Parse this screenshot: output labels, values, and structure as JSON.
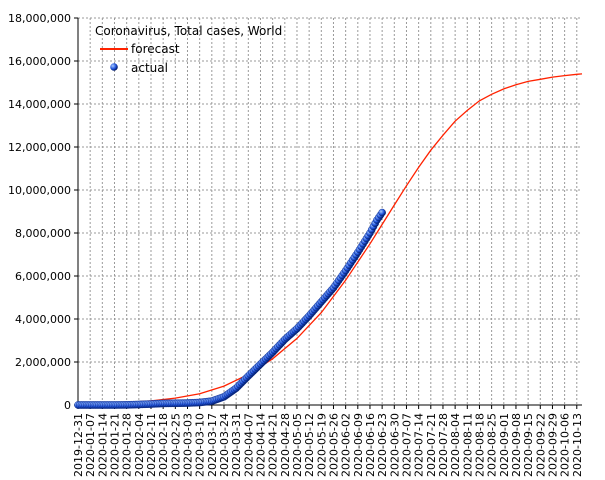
{
  "chart_data": {
    "type": "line",
    "title": "Coronavirus, Total cases, World",
    "xlabel": "",
    "ylabel": "",
    "x_range": [
      "2019-12-31",
      "2020-10-16"
    ],
    "ylim": [
      0,
      18000000
    ],
    "y_ticks": [
      0,
      2000000,
      4000000,
      6000000,
      8000000,
      10000000,
      12000000,
      14000000,
      16000000,
      18000000
    ],
    "y_tick_labels": [
      "0",
      "2,000,000",
      "4,000,000",
      "6,000,000",
      "8,000,000",
      "10,000,000",
      "12,000,000",
      "14,000,000",
      "16,000,000",
      "18,000,000"
    ],
    "x_tick_labels": [
      "2019-12-31",
      "2020-01-07",
      "2020-01-14",
      "2020-01-21",
      "2020-01-28",
      "2020-02-04",
      "2020-02-11",
      "2020-02-18",
      "2020-02-25",
      "2020-03-03",
      "2020-03-10",
      "2020-03-17",
      "2020-03-24",
      "2020-03-31",
      "2020-04-07",
      "2020-04-14",
      "2020-04-21",
      "2020-04-28",
      "2020-05-05",
      "2020-05-12",
      "2020-05-19",
      "2020-05-26",
      "2020-06-02",
      "2020-06-09",
      "2020-06-16",
      "2020-06-23",
      "2020-06-30",
      "2020-07-07",
      "2020-07-14",
      "2020-07-21",
      "2020-07-28",
      "2020-08-04",
      "2020-08-11",
      "2020-08-18",
      "2020-08-25",
      "2020-09-01",
      "2020-09-08",
      "2020-09-15",
      "2020-09-22",
      "2020-09-29",
      "2020-10-06",
      "2020-10-13"
    ],
    "grid": true,
    "legend_position": "top-left",
    "series": [
      {
        "name": "forecast",
        "kind": "line",
        "color": "#ff2200",
        "points": [
          [
            "2019-12-31",
            60000
          ],
          [
            "2020-01-14",
            80000
          ],
          [
            "2020-01-28",
            120000
          ],
          [
            "2020-02-11",
            190000
          ],
          [
            "2020-02-25",
            320000
          ],
          [
            "2020-03-10",
            520000
          ],
          [
            "2020-03-24",
            880000
          ],
          [
            "2020-04-07",
            1420000
          ],
          [
            "2020-04-21",
            2150000
          ],
          [
            "2020-05-05",
            3100000
          ],
          [
            "2020-05-19",
            4300000
          ],
          [
            "2020-06-02",
            5800000
          ],
          [
            "2020-06-16",
            7500000
          ],
          [
            "2020-06-30",
            9300000
          ],
          [
            "2020-07-07",
            10200000
          ],
          [
            "2020-07-14",
            11050000
          ],
          [
            "2020-07-21",
            11850000
          ],
          [
            "2020-07-28",
            12550000
          ],
          [
            "2020-08-04",
            13200000
          ],
          [
            "2020-08-11",
            13700000
          ],
          [
            "2020-08-18",
            14150000
          ],
          [
            "2020-08-25",
            14450000
          ],
          [
            "2020-09-01",
            14700000
          ],
          [
            "2020-09-08",
            14900000
          ],
          [
            "2020-09-15",
            15050000
          ],
          [
            "2020-09-22",
            15150000
          ],
          [
            "2020-09-29",
            15250000
          ],
          [
            "2020-10-06",
            15320000
          ],
          [
            "2020-10-13",
            15380000
          ],
          [
            "2020-10-16",
            15400000
          ]
        ]
      },
      {
        "name": "actual",
        "kind": "scatter",
        "color": "#2255dd",
        "points": [
          [
            "2019-12-31",
            0
          ],
          [
            "2020-01-07",
            0
          ],
          [
            "2020-01-14",
            100
          ],
          [
            "2020-01-21",
            300
          ],
          [
            "2020-01-28",
            5000
          ],
          [
            "2020-02-04",
            24000
          ],
          [
            "2020-02-11",
            45000
          ],
          [
            "2020-02-18",
            73000
          ],
          [
            "2020-02-25",
            80000
          ],
          [
            "2020-03-03",
            91000
          ],
          [
            "2020-03-10",
            116000
          ],
          [
            "2020-03-17",
            180000
          ],
          [
            "2020-03-24",
            380000
          ],
          [
            "2020-03-31",
            780000
          ],
          [
            "2020-04-07",
            1350000
          ],
          [
            "2020-04-14",
            1900000
          ],
          [
            "2020-04-21",
            2450000
          ],
          [
            "2020-04-28",
            3050000
          ],
          [
            "2020-05-05",
            3550000
          ],
          [
            "2020-05-12",
            4150000
          ],
          [
            "2020-05-19",
            4800000
          ],
          [
            "2020-05-26",
            5450000
          ],
          [
            "2020-06-02",
            6250000
          ],
          [
            "2020-06-09",
            7100000
          ],
          [
            "2020-06-16",
            8000000
          ],
          [
            "2020-06-20",
            8600000
          ],
          [
            "2020-06-23",
            8950000
          ]
        ]
      }
    ]
  }
}
